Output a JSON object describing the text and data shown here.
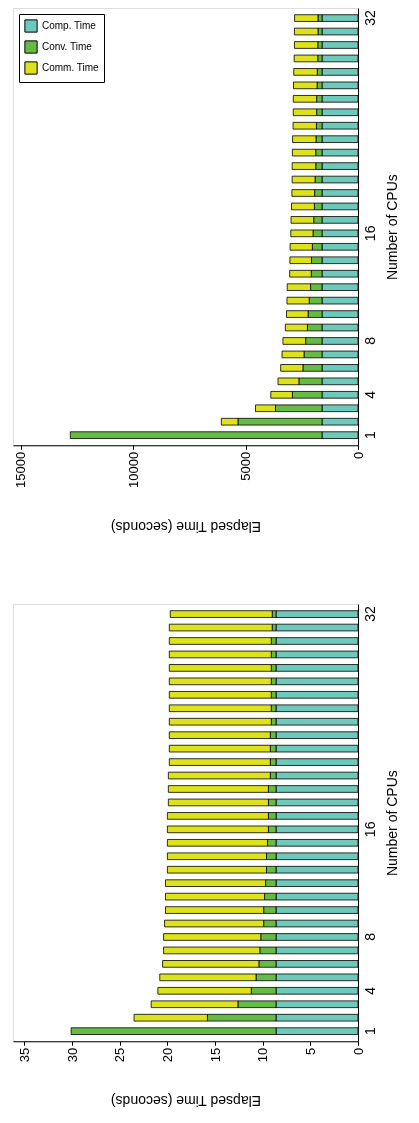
{
  "chart_data": [
    {
      "type": "bar",
      "orientation": "horizontal",
      "stacked": true,
      "xlabel": "Elapsed Time (seconds)",
      "ylabel": "Number of CPUs",
      "categories": [
        "32",
        null,
        null,
        null,
        null,
        null,
        null,
        null,
        null,
        null,
        null,
        null,
        null,
        null,
        null,
        null,
        "16",
        null,
        null,
        null,
        null,
        null,
        null,
        null,
        "8",
        null,
        null,
        null,
        "4",
        null,
        null,
        "1"
      ],
      "xlim": [
        15350,
        0
      ],
      "xticks": [
        15000,
        10000,
        5000,
        0
      ],
      "grid": false,
      "legend": "top left",
      "series": [
        {
          "name": "Comp. Time",
          "color": "#6ec9bb",
          "values": [
            1600,
            1600,
            1600,
            1600,
            1600,
            1600,
            1600,
            1600,
            1600,
            1600,
            1600,
            1600,
            1600,
            1600,
            1600,
            1600,
            1600,
            1600,
            1600,
            1600,
            1600,
            1600,
            1600,
            1600,
            1600,
            1600,
            1600,
            1600,
            1600,
            1600,
            1600,
            1600
          ]
        },
        {
          "name": "Conv. Time",
          "color": "#66bb44",
          "values": [
            180,
            180,
            190,
            190,
            210,
            220,
            240,
            240,
            250,
            270,
            280,
            280,
            310,
            330,
            340,
            370,
            400,
            430,
            470,
            480,
            510,
            570,
            620,
            650,
            730,
            800,
            850,
            1030,
            1320,
            2070,
            3740,
            11200
          ]
        },
        {
          "name": "Comm. Time",
          "color": "#dde21a",
          "values": [
            1040,
            1050,
            1040,
            1050,
            1050,
            1050,
            1040,
            1040,
            1040,
            1040,
            1040,
            1050,
            1020,
            1010,
            1020,
            1010,
            990,
            990,
            960,
            960,
            1040,
            990,
            960,
            980,
            1010,
            980,
            990,
            930,
            960,
            890,
            740,
            null
          ]
        }
      ]
    },
    {
      "type": "bar",
      "orientation": "horizontal",
      "stacked": true,
      "xlabel": "Elapsed Time (seconds)",
      "ylabel": "Number of CPUs",
      "categories": [
        "32",
        null,
        null,
        null,
        null,
        null,
        null,
        null,
        null,
        null,
        null,
        null,
        null,
        null,
        null,
        null,
        "16",
        null,
        null,
        null,
        null,
        null,
        null,
        null,
        "8",
        null,
        null,
        null,
        "4",
        null,
        null,
        "1"
      ],
      "xlim": [
        36.2,
        0
      ],
      "xticks": [
        35,
        30,
        25,
        20,
        15,
        10,
        5,
        0
      ],
      "grid": false,
      "legend": "top left",
      "series": [
        {
          "name": "Comp. Time",
          "color": "#6ec9bb",
          "values": [
            8.6,
            8.6,
            8.6,
            8.6,
            8.6,
            8.6,
            8.6,
            8.6,
            8.6,
            8.6,
            8.6,
            8.6,
            8.6,
            8.6,
            8.6,
            8.6,
            8.6,
            8.6,
            8.6,
            8.6,
            8.6,
            8.6,
            8.6,
            8.6,
            8.6,
            8.6,
            8.6,
            8.6,
            8.6,
            8.6,
            8.6,
            8.6
          ]
        },
        {
          "name": "Conv. Time",
          "color": "#66bb44",
          "values": [
            0.4,
            0.4,
            0.5,
            0.5,
            0.5,
            0.5,
            0.5,
            0.5,
            0.5,
            0.6,
            0.6,
            0.6,
            0.6,
            0.8,
            0.8,
            0.8,
            0.8,
            0.9,
            1.0,
            1.0,
            1.1,
            1.2,
            1.3,
            1.3,
            1.6,
            1.7,
            1.8,
            2.1,
            2.6,
            4.0,
            7.2,
            21.5
          ]
        },
        {
          "name": "Comm. Time",
          "color": "#dde21a",
          "values": [
            10.7,
            10.8,
            10.7,
            10.7,
            10.7,
            10.7,
            10.7,
            10.7,
            10.7,
            10.6,
            10.6,
            10.6,
            10.7,
            10.5,
            10.5,
            10.6,
            10.6,
            10.5,
            10.4,
            10.4,
            10.5,
            10.4,
            10.3,
            10.4,
            10.2,
            10.1,
            10.1,
            10.1,
            9.8,
            9.1,
            7.7,
            null
          ]
        }
      ]
    }
  ]
}
